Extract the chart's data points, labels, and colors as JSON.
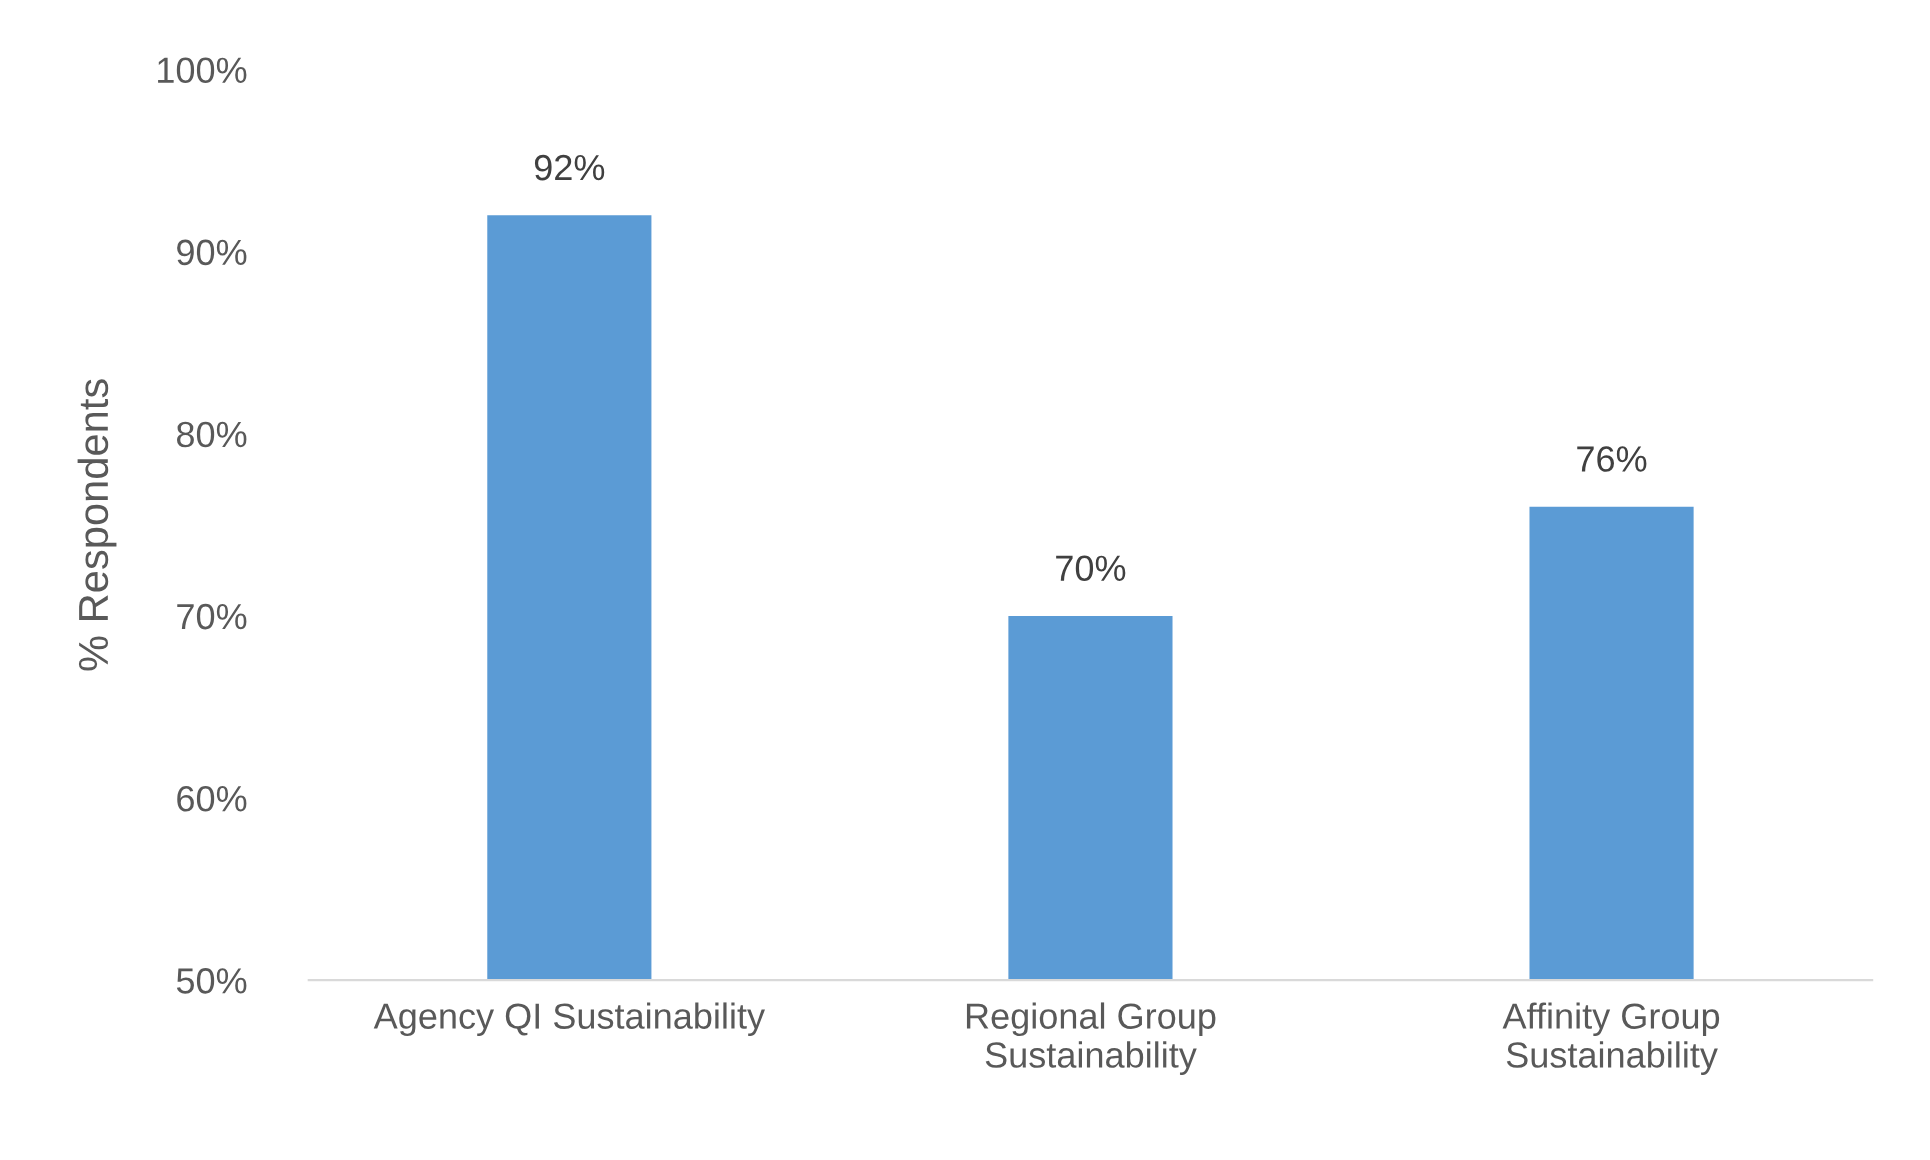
{
  "chart_data": {
    "type": "bar",
    "ylabel": "% Respondents",
    "categories": [
      "Agency QI Sustainability",
      "Regional Group\nSustainability",
      "Affinity Group\nSustainability"
    ],
    "values": [
      92,
      70,
      76
    ],
    "value_labels": [
      "92%",
      "70%",
      "76%"
    ],
    "color": "#5b9bd5",
    "ylim": [
      50,
      100
    ],
    "yticks": [
      {
        "value": 50,
        "label": "50%"
      },
      {
        "value": 60,
        "label": "60%"
      },
      {
        "value": 70,
        "label": "70%"
      },
      {
        "value": 80,
        "label": "80%"
      },
      {
        "value": 90,
        "label": "90%"
      },
      {
        "value": 100,
        "label": "100%"
      }
    ],
    "grid": false,
    "legend": false
  }
}
